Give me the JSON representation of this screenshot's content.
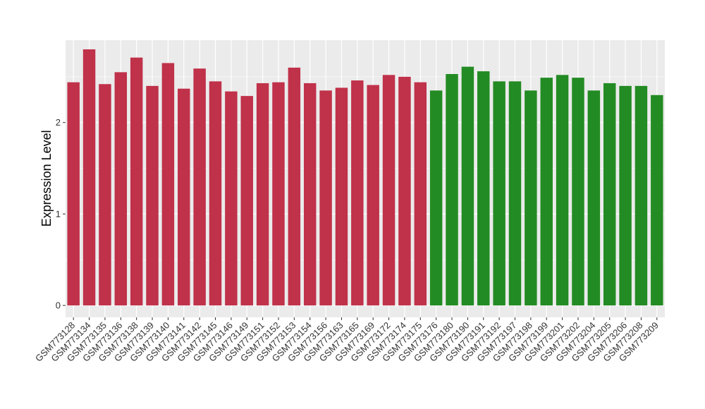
{
  "chart_data": {
    "type": "bar",
    "title": "",
    "xlabel": "",
    "ylabel": "Expression Level",
    "ylim": [
      -0.13,
      2.9
    ],
    "yticks": [
      0,
      1,
      2
    ],
    "grid": true,
    "legend": "none",
    "categories": [
      "GSM773128",
      "GSM773134",
      "GSM773135",
      "GSM773136",
      "GSM773138",
      "GSM773139",
      "GSM773140",
      "GSM773141",
      "GSM773142",
      "GSM773145",
      "GSM773146",
      "GSM773149",
      "GSM773151",
      "GSM773152",
      "GSM773153",
      "GSM773154",
      "GSM773156",
      "GSM773163",
      "GSM773165",
      "GSM773169",
      "GSM773172",
      "GSM773174",
      "GSM773175",
      "GSM773176",
      "GSM773180",
      "GSM773190",
      "GSM773191",
      "GSM773192",
      "GSM773197",
      "GSM773198",
      "GSM773199",
      "GSM773201",
      "GSM773202",
      "GSM773204",
      "GSM773205",
      "GSM773206",
      "GSM773208",
      "GSM773209"
    ],
    "values": [
      2.44,
      2.8,
      2.42,
      2.55,
      2.71,
      2.4,
      2.65,
      2.37,
      2.59,
      2.45,
      2.34,
      2.29,
      2.43,
      2.44,
      2.6,
      2.43,
      2.35,
      2.38,
      2.46,
      2.41,
      2.52,
      2.5,
      2.44,
      2.35,
      2.53,
      2.61,
      2.56,
      2.45,
      2.45,
      2.35,
      2.49,
      2.52,
      2.49,
      2.35,
      2.43,
      2.4,
      2.4,
      2.3
    ],
    "bar_colors": [
      "#c0314a",
      "#c0314a",
      "#c0314a",
      "#c0314a",
      "#c0314a",
      "#c0314a",
      "#c0314a",
      "#c0314a",
      "#c0314a",
      "#c0314a",
      "#c0314a",
      "#c0314a",
      "#c0314a",
      "#c0314a",
      "#c0314a",
      "#c0314a",
      "#c0314a",
      "#c0314a",
      "#c0314a",
      "#c0314a",
      "#c0314a",
      "#c0314a",
      "#c0314a",
      "#238b23",
      "#238b23",
      "#238b23",
      "#238b23",
      "#238b23",
      "#238b23",
      "#238b23",
      "#238b23",
      "#238b23",
      "#238b23",
      "#238b23",
      "#238b23",
      "#238b23",
      "#238b23",
      "#238b23"
    ],
    "panel_background": "#ebebeb",
    "grid_color": "#ffffff"
  }
}
